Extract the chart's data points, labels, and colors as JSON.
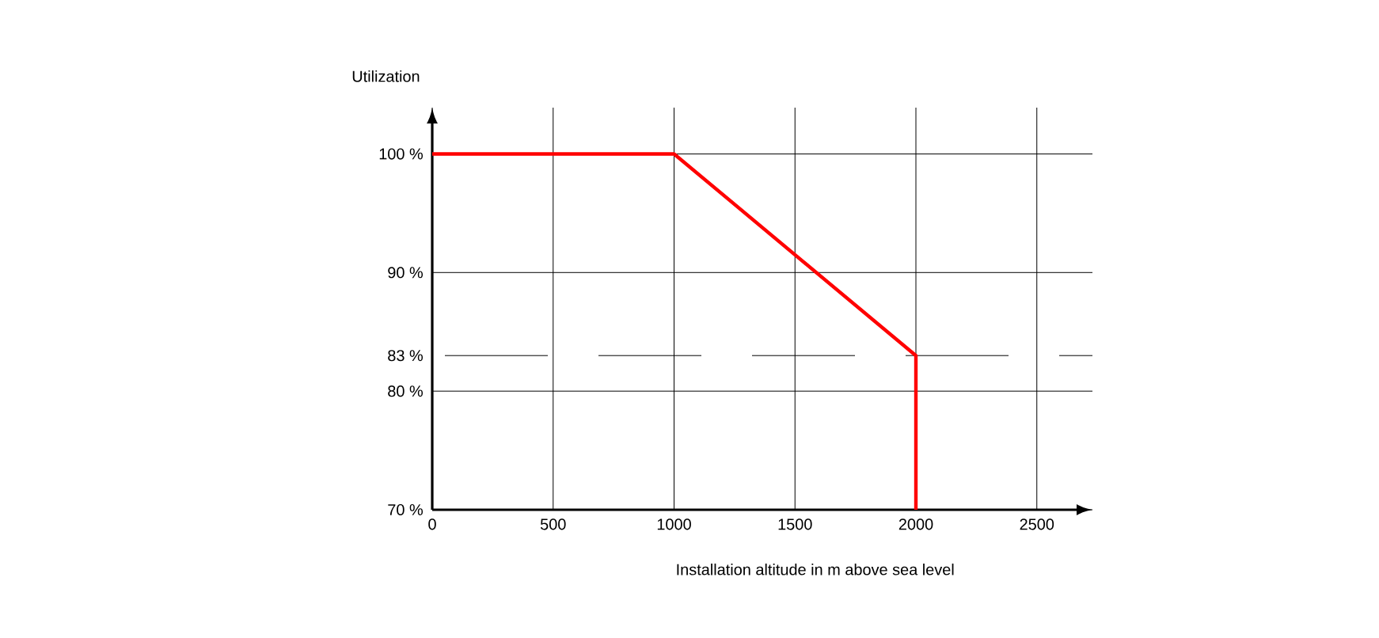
{
  "chart_data": {
    "type": "line",
    "ylabel": "Utilization",
    "xlabel": "Installation altitude in m above sea level",
    "x": [
      0,
      1000,
      2000,
      2000
    ],
    "series": [
      {
        "color": "#ff0000",
        "values": [
          100,
          100,
          83,
          70
        ]
      }
    ],
    "xlim": [
      0,
      2730
    ],
    "ylim": [
      70,
      103.9
    ],
    "xticks": [
      0,
      500,
      1000,
      1500,
      2000,
      2500
    ],
    "yticks": [
      {
        "value": 70,
        "label": "70 %"
      },
      {
        "value": 80,
        "label": "80 %"
      },
      {
        "value": 90,
        "label": "90 %"
      },
      {
        "value": 100,
        "label": "100 %"
      }
    ],
    "ref_lines": [
      {
        "axis": "y",
        "value": 83,
        "label": "83 %",
        "line_style": "dashed"
      }
    ],
    "grid": true,
    "marker": "none",
    "line_style": "solid"
  }
}
